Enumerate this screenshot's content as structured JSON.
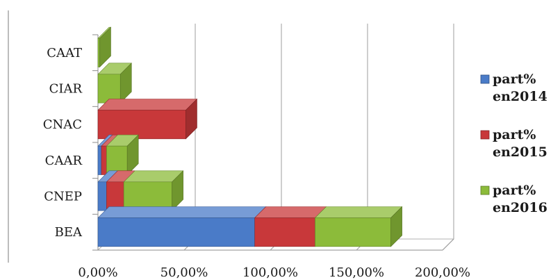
{
  "chart_data": {
    "type": "bar",
    "orientation": "horizontal",
    "stacked": true,
    "three_d": true,
    "categories": [
      "BEA",
      "CNEP",
      "CAAR",
      "CNAC",
      "CIAR",
      "CAAT"
    ],
    "series": [
      {
        "name": "part% en2014",
        "name_lines": [
          "part%",
          "en2014"
        ],
        "color": "#4A7BC8",
        "values": [
          91,
          5,
          2,
          0,
          0,
          0
        ]
      },
      {
        "name": "part% en2015",
        "name_lines": [
          "part%",
          "en2015"
        ],
        "color": "#C8383A",
        "values": [
          35,
          10,
          3,
          51,
          0,
          0
        ]
      },
      {
        "name": "part% en2016",
        "name_lines": [
          "part%",
          "en2016"
        ],
        "color": "#8CBB3A",
        "values": [
          44,
          28,
          12,
          0,
          13,
          1
        ]
      }
    ],
    "x_ticks": [
      "0,00%",
      "50,00%",
      "100,00%",
      "150,00%",
      "200,00%"
    ],
    "xlim": [
      0,
      200
    ],
    "grid": true,
    "legend_position": "right",
    "title": "",
    "xlabel": "",
    "ylabel": ""
  }
}
